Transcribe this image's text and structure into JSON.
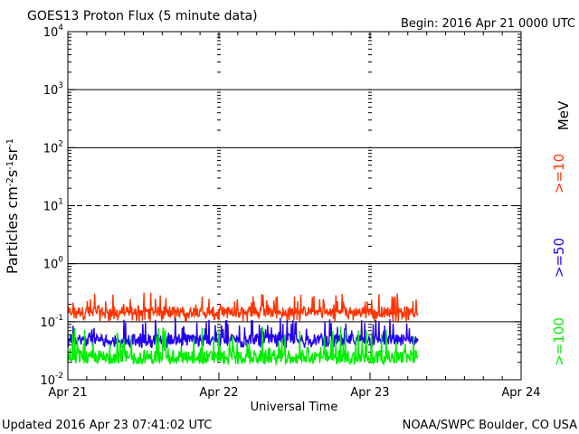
{
  "header": {
    "title": "GOES13 Proton Flux (5 minute data)",
    "begin_label": "Begin: 2016 Apr 21 0000 UTC"
  },
  "footer": {
    "updated": "Updated 2016 Apr 23 07:41:02 UTC",
    "credit": "NOAA/SWPC Boulder, CO USA"
  },
  "chart_data": {
    "type": "line",
    "title": "GOES13 Proton Flux (5 minute data)",
    "xlabel": "Universal Time",
    "ylabel": {
      "base": "Particles cm",
      "parts": [
        [
          "-2",
          true
        ],
        [
          "s",
          false
        ],
        [
          "-1",
          true
        ],
        [
          "sr",
          false
        ],
        [
          "-1",
          true
        ]
      ]
    },
    "x_tick_labels": [
      "Apr 21",
      "Apr 22",
      "Apr 23",
      "Apr 24"
    ],
    "xlim_days": [
      0,
      3
    ],
    "yscale": "log",
    "ylim": [
      0.01,
      10000
    ],
    "y_tick_labels": [
      {
        "base": "10",
        "exp": "4",
        "value": 10000
      },
      {
        "base": "10",
        "exp": "3",
        "value": 1000
      },
      {
        "base": "10",
        "exp": "2",
        "value": 100
      },
      {
        "base": "10",
        "exp": "1",
        "value": 10
      },
      {
        "base": "10",
        "exp": "0",
        "value": 1
      },
      {
        "base": "10",
        "exp": "-1",
        "value": 0.1
      },
      {
        "base": "10",
        "exp": "-2",
        "value": 0.01
      }
    ],
    "threshold_lines": [
      {
        "value": 10,
        "style": "dashed"
      },
      {
        "value": 1000,
        "style": "solid"
      },
      {
        "value": 100,
        "style": "solid"
      },
      {
        "value": 1,
        "style": "solid"
      },
      {
        "value": 0.1,
        "style": "solid"
      }
    ],
    "data_end_day": 2.32,
    "units_label": "MeV",
    "series": [
      {
        "name": ">=10",
        "color": "#ff3300",
        "typical": 0.15,
        "low": 0.1,
        "high": 0.32
      },
      {
        "name": ">=50",
        "color": "#2200ee",
        "typical": 0.05,
        "low": 0.035,
        "high": 0.12
      },
      {
        "name": ">=100",
        "color": "#00ee00",
        "typical": 0.025,
        "low": 0.018,
        "high": 0.085
      }
    ]
  }
}
